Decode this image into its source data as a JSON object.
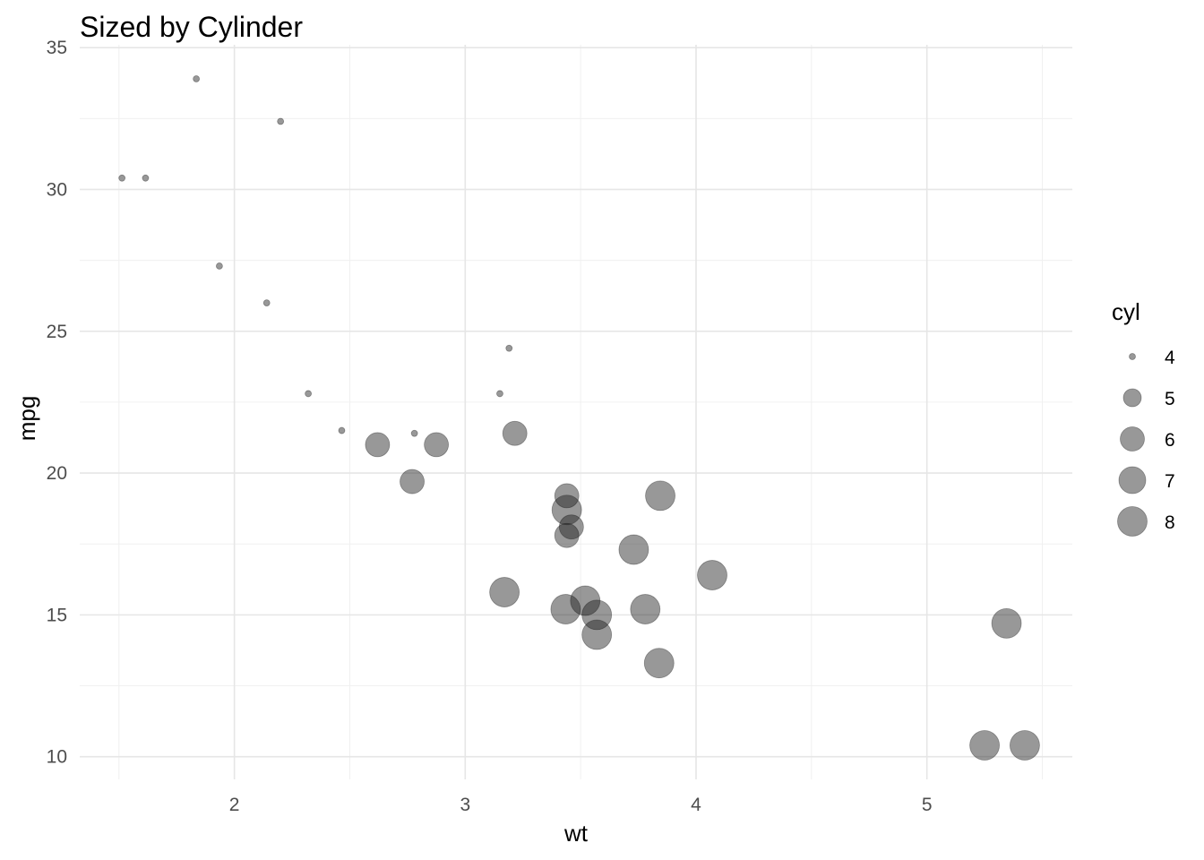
{
  "chart_data": {
    "type": "scatter",
    "title": "Sized by Cylinder",
    "xlabel": "wt",
    "ylabel": "mpg",
    "xlim": [
      1.33,
      5.63
    ],
    "ylim": [
      9.2,
      35.1
    ],
    "x_ticks": [
      2,
      3,
      4,
      5
    ],
    "y_ticks": [
      10,
      15,
      20,
      25,
      30,
      35
    ],
    "x_minor": [
      1.5,
      2.5,
      3.5,
      4.5,
      5.5
    ],
    "y_minor": [
      12.5,
      17.5,
      22.5,
      27.5,
      32.5
    ],
    "grid": true,
    "legend": {
      "title": "cyl",
      "position": "right",
      "entries": [
        "4",
        "5",
        "6",
        "7",
        "8"
      ]
    },
    "point_color": "#1a1a1a",
    "point_opacity": 0.45,
    "size_by": "cyl",
    "points": [
      {
        "wt": 2.62,
        "mpg": 21.0,
        "cyl": 6
      },
      {
        "wt": 2.875,
        "mpg": 21.0,
        "cyl": 6
      },
      {
        "wt": 2.32,
        "mpg": 22.8,
        "cyl": 4
      },
      {
        "wt": 3.215,
        "mpg": 21.4,
        "cyl": 6
      },
      {
        "wt": 3.44,
        "mpg": 18.7,
        "cyl": 8
      },
      {
        "wt": 3.46,
        "mpg": 18.1,
        "cyl": 6
      },
      {
        "wt": 3.57,
        "mpg": 14.3,
        "cyl": 8
      },
      {
        "wt": 3.19,
        "mpg": 24.4,
        "cyl": 4
      },
      {
        "wt": 3.15,
        "mpg": 22.8,
        "cyl": 4
      },
      {
        "wt": 3.44,
        "mpg": 19.2,
        "cyl": 6
      },
      {
        "wt": 3.44,
        "mpg": 17.8,
        "cyl": 6
      },
      {
        "wt": 4.07,
        "mpg": 16.4,
        "cyl": 8
      },
      {
        "wt": 3.73,
        "mpg": 17.3,
        "cyl": 8
      },
      {
        "wt": 3.78,
        "mpg": 15.2,
        "cyl": 8
      },
      {
        "wt": 5.25,
        "mpg": 10.4,
        "cyl": 8
      },
      {
        "wt": 5.424,
        "mpg": 10.4,
        "cyl": 8
      },
      {
        "wt": 5.345,
        "mpg": 14.7,
        "cyl": 8
      },
      {
        "wt": 2.2,
        "mpg": 32.4,
        "cyl": 4
      },
      {
        "wt": 1.615,
        "mpg": 30.4,
        "cyl": 4
      },
      {
        "wt": 1.835,
        "mpg": 33.9,
        "cyl": 4
      },
      {
        "wt": 2.465,
        "mpg": 21.5,
        "cyl": 4
      },
      {
        "wt": 3.52,
        "mpg": 15.5,
        "cyl": 8
      },
      {
        "wt": 3.435,
        "mpg": 15.2,
        "cyl": 8
      },
      {
        "wt": 3.84,
        "mpg": 13.3,
        "cyl": 8
      },
      {
        "wt": 3.845,
        "mpg": 19.2,
        "cyl": 8
      },
      {
        "wt": 1.935,
        "mpg": 27.3,
        "cyl": 4
      },
      {
        "wt": 2.14,
        "mpg": 26.0,
        "cyl": 4
      },
      {
        "wt": 1.513,
        "mpg": 30.4,
        "cyl": 4
      },
      {
        "wt": 3.17,
        "mpg": 15.8,
        "cyl": 8
      },
      {
        "wt": 2.77,
        "mpg": 19.7,
        "cyl": 6
      },
      {
        "wt": 3.57,
        "mpg": 15.0,
        "cyl": 8
      },
      {
        "wt": 2.78,
        "mpg": 21.4,
        "cyl": 4
      }
    ]
  }
}
